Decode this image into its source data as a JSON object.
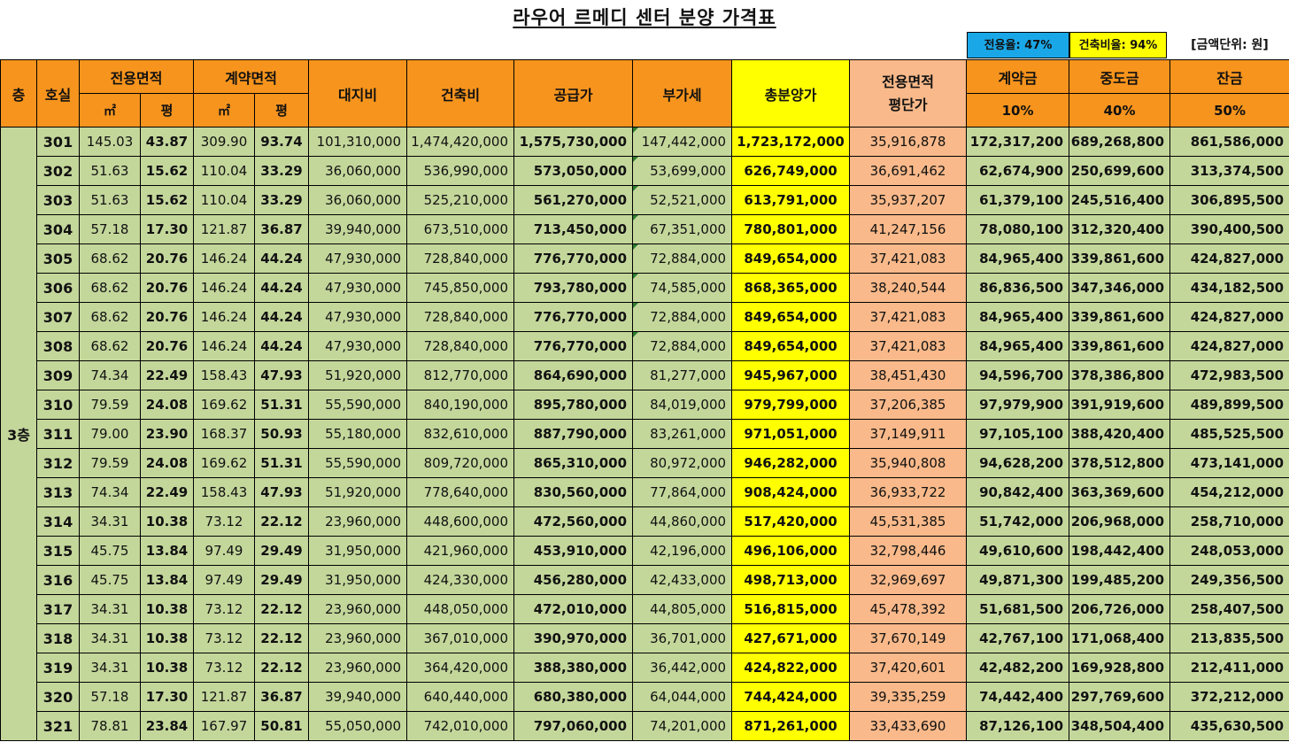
{
  "title": "라우어 르메디 센터 분양 가격표",
  "badges": {
    "exclusive_ratio": "전용율: 47%",
    "building_ratio": "건축비율: 94%",
    "unit": "[금액단위: 원]"
  },
  "header": {
    "floor": "층",
    "unit_no": "호실",
    "exclusive_area": "전용면적",
    "contract_area": "계약면적",
    "m2": "㎡",
    "pyeong": "평",
    "land": "대지비",
    "construction": "건축비",
    "supply": "공급가",
    "vat": "부가세",
    "total": "총분양가",
    "per_pyeong": "전용면적\n평단가",
    "deposit": "계약금",
    "interim": "중도금",
    "balance": "잔금",
    "deposit_pct": "10%",
    "interim_pct": "40%",
    "balance_pct": "50%"
  },
  "floor_label": "3층",
  "rows": [
    {
      "ho": "301",
      "ex_m2": "145.03",
      "ex_py": "43.87",
      "ct_m2": "309.90",
      "ct_py": "93.74",
      "land": "101,310,000",
      "construction": "1,474,420,000",
      "supply": "1,575,730,000",
      "vat": "147,442,000",
      "total": "1,723,172,000",
      "per_py": "35,916,878",
      "deposit": "172,317,200",
      "interim": "689,268,800",
      "balance": "861,586,000"
    },
    {
      "ho": "302",
      "ex_m2": "51.63",
      "ex_py": "15.62",
      "ct_m2": "110.04",
      "ct_py": "33.29",
      "land": "36,060,000",
      "construction": "536,990,000",
      "supply": "573,050,000",
      "vat": "53,699,000",
      "total": "626,749,000",
      "per_py": "36,691,462",
      "deposit": "62,674,900",
      "interim": "250,699,600",
      "balance": "313,374,500"
    },
    {
      "ho": "303",
      "ex_m2": "51.63",
      "ex_py": "15.62",
      "ct_m2": "110.04",
      "ct_py": "33.29",
      "land": "36,060,000",
      "construction": "525,210,000",
      "supply": "561,270,000",
      "vat": "52,521,000",
      "total": "613,791,000",
      "per_py": "35,937,207",
      "deposit": "61,379,100",
      "interim": "245,516,400",
      "balance": "306,895,500"
    },
    {
      "ho": "304",
      "ex_m2": "57.18",
      "ex_py": "17.30",
      "ct_m2": "121.87",
      "ct_py": "36.87",
      "land": "39,940,000",
      "construction": "673,510,000",
      "supply": "713,450,000",
      "vat": "67,351,000",
      "total": "780,801,000",
      "per_py": "41,247,156",
      "deposit": "78,080,100",
      "interim": "312,320,400",
      "balance": "390,400,500"
    },
    {
      "ho": "305",
      "ex_m2": "68.62",
      "ex_py": "20.76",
      "ct_m2": "146.24",
      "ct_py": "44.24",
      "land": "47,930,000",
      "construction": "728,840,000",
      "supply": "776,770,000",
      "vat": "72,884,000",
      "total": "849,654,000",
      "per_py": "37,421,083",
      "deposit": "84,965,400",
      "interim": "339,861,600",
      "balance": "424,827,000"
    },
    {
      "ho": "306",
      "ex_m2": "68.62",
      "ex_py": "20.76",
      "ct_m2": "146.24",
      "ct_py": "44.24",
      "land": "47,930,000",
      "construction": "745,850,000",
      "supply": "793,780,000",
      "vat": "74,585,000",
      "total": "868,365,000",
      "per_py": "38,240,544",
      "deposit": "86,836,500",
      "interim": "347,346,000",
      "balance": "434,182,500"
    },
    {
      "ho": "307",
      "ex_m2": "68.62",
      "ex_py": "20.76",
      "ct_m2": "146.24",
      "ct_py": "44.24",
      "land": "47,930,000",
      "construction": "728,840,000",
      "supply": "776,770,000",
      "vat": "72,884,000",
      "total": "849,654,000",
      "per_py": "37,421,083",
      "deposit": "84,965,400",
      "interim": "339,861,600",
      "balance": "424,827,000"
    },
    {
      "ho": "308",
      "ex_m2": "68.62",
      "ex_py": "20.76",
      "ct_m2": "146.24",
      "ct_py": "44.24",
      "land": "47,930,000",
      "construction": "728,840,000",
      "supply": "776,770,000",
      "vat": "72,884,000",
      "total": "849,654,000",
      "per_py": "37,421,083",
      "deposit": "84,965,400",
      "interim": "339,861,600",
      "balance": "424,827,000"
    },
    {
      "ho": "309",
      "ex_m2": "74.34",
      "ex_py": "22.49",
      "ct_m2": "158.43",
      "ct_py": "47.93",
      "land": "51,920,000",
      "construction": "812,770,000",
      "supply": "864,690,000",
      "vat": "81,277,000",
      "total": "945,967,000",
      "per_py": "38,451,430",
      "deposit": "94,596,700",
      "interim": "378,386,800",
      "balance": "472,983,500"
    },
    {
      "ho": "310",
      "ex_m2": "79.59",
      "ex_py": "24.08",
      "ct_m2": "169.62",
      "ct_py": "51.31",
      "land": "55,590,000",
      "construction": "840,190,000",
      "supply": "895,780,000",
      "vat": "84,019,000",
      "total": "979,799,000",
      "per_py": "37,206,385",
      "deposit": "97,979,900",
      "interim": "391,919,600",
      "balance": "489,899,500"
    },
    {
      "ho": "311",
      "ex_m2": "79.00",
      "ex_py": "23.90",
      "ct_m2": "168.37",
      "ct_py": "50.93",
      "land": "55,180,000",
      "construction": "832,610,000",
      "supply": "887,790,000",
      "vat": "83,261,000",
      "total": "971,051,000",
      "per_py": "37,149,911",
      "deposit": "97,105,100",
      "interim": "388,420,400",
      "balance": "485,525,500"
    },
    {
      "ho": "312",
      "ex_m2": "79.59",
      "ex_py": "24.08",
      "ct_m2": "169.62",
      "ct_py": "51.31",
      "land": "55,590,000",
      "construction": "809,720,000",
      "supply": "865,310,000",
      "vat": "80,972,000",
      "total": "946,282,000",
      "per_py": "35,940,808",
      "deposit": "94,628,200",
      "interim": "378,512,800",
      "balance": "473,141,000"
    },
    {
      "ho": "313",
      "ex_m2": "74.34",
      "ex_py": "22.49",
      "ct_m2": "158.43",
      "ct_py": "47.93",
      "land": "51,920,000",
      "construction": "778,640,000",
      "supply": "830,560,000",
      "vat": "77,864,000",
      "total": "908,424,000",
      "per_py": "36,933,722",
      "deposit": "90,842,400",
      "interim": "363,369,600",
      "balance": "454,212,000"
    },
    {
      "ho": "314",
      "ex_m2": "34.31",
      "ex_py": "10.38",
      "ct_m2": "73.12",
      "ct_py": "22.12",
      "land": "23,960,000",
      "construction": "448,600,000",
      "supply": "472,560,000",
      "vat": "44,860,000",
      "total": "517,420,000",
      "per_py": "45,531,385",
      "deposit": "51,742,000",
      "interim": "206,968,000",
      "balance": "258,710,000"
    },
    {
      "ho": "315",
      "ex_m2": "45.75",
      "ex_py": "13.84",
      "ct_m2": "97.49",
      "ct_py": "29.49",
      "land": "31,950,000",
      "construction": "421,960,000",
      "supply": "453,910,000",
      "vat": "42,196,000",
      "total": "496,106,000",
      "per_py": "32,798,446",
      "deposit": "49,610,600",
      "interim": "198,442,400",
      "balance": "248,053,000"
    },
    {
      "ho": "316",
      "ex_m2": "45.75",
      "ex_py": "13.84",
      "ct_m2": "97.49",
      "ct_py": "29.49",
      "land": "31,950,000",
      "construction": "424,330,000",
      "supply": "456,280,000",
      "vat": "42,433,000",
      "total": "498,713,000",
      "per_py": "32,969,697",
      "deposit": "49,871,300",
      "interim": "199,485,200",
      "balance": "249,356,500"
    },
    {
      "ho": "317",
      "ex_m2": "34.31",
      "ex_py": "10.38",
      "ct_m2": "73.12",
      "ct_py": "22.12",
      "land": "23,960,000",
      "construction": "448,050,000",
      "supply": "472,010,000",
      "vat": "44,805,000",
      "total": "516,815,000",
      "per_py": "45,478,392",
      "deposit": "51,681,500",
      "interim": "206,726,000",
      "balance": "258,407,500"
    },
    {
      "ho": "318",
      "ex_m2": "34.31",
      "ex_py": "10.38",
      "ct_m2": "73.12",
      "ct_py": "22.12",
      "land": "23,960,000",
      "construction": "367,010,000",
      "supply": "390,970,000",
      "vat": "36,701,000",
      "total": "427,671,000",
      "per_py": "37,670,149",
      "deposit": "42,767,100",
      "interim": "171,068,400",
      "balance": "213,835,500"
    },
    {
      "ho": "319",
      "ex_m2": "34.31",
      "ex_py": "10.38",
      "ct_m2": "73.12",
      "ct_py": "22.12",
      "land": "23,960,000",
      "construction": "364,420,000",
      "supply": "388,380,000",
      "vat": "36,442,000",
      "total": "424,822,000",
      "per_py": "37,420,601",
      "deposit": "42,482,200",
      "interim": "169,928,800",
      "balance": "212,411,000"
    },
    {
      "ho": "320",
      "ex_m2": "57.18",
      "ex_py": "17.30",
      "ct_m2": "121.87",
      "ct_py": "36.87",
      "land": "39,940,000",
      "construction": "640,440,000",
      "supply": "680,380,000",
      "vat": "64,044,000",
      "total": "744,424,000",
      "per_py": "39,335,259",
      "deposit": "74,442,400",
      "interim": "297,769,600",
      "balance": "372,212,000"
    },
    {
      "ho": "321",
      "ex_m2": "78.81",
      "ex_py": "23.84",
      "ct_m2": "167.97",
      "ct_py": "50.81",
      "land": "55,050,000",
      "construction": "742,010,000",
      "supply": "797,060,000",
      "vat": "74,201,000",
      "total": "871,261,000",
      "per_py": "33,433,690",
      "deposit": "87,126,100",
      "interim": "348,504,400",
      "balance": "435,630,500"
    }
  ],
  "vat_marker_rows": [
    0,
    1,
    2,
    3,
    4,
    5,
    6,
    7
  ],
  "colors": {
    "header_orange": "#f7941d",
    "row_green": "#c4d79b",
    "total_yellow": "#ffff00",
    "peach": "#f9b98a",
    "badge_blue": "#1aa7e8"
  }
}
